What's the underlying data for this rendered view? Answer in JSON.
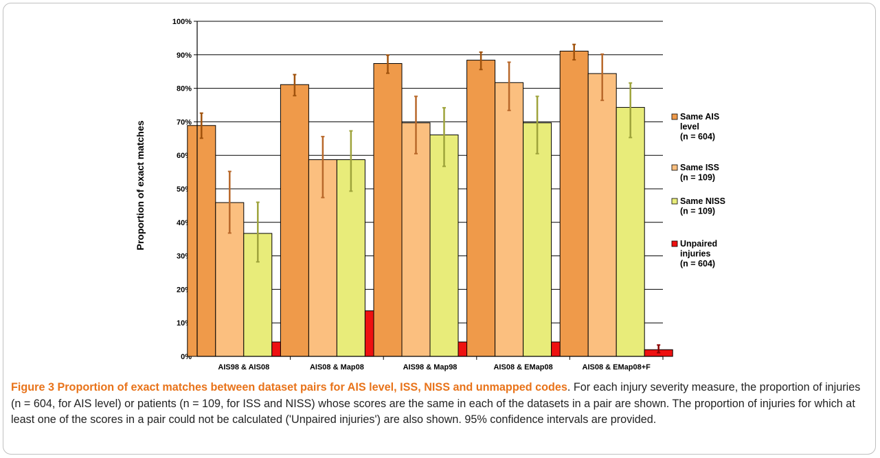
{
  "chart_data": {
    "type": "bar",
    "title": "",
    "xlabel": "",
    "ylabel": "Proportion of exact matches",
    "ylim": [
      0,
      100
    ],
    "yticks": [
      "0%",
      "10%",
      "20%",
      "30%",
      "40%",
      "50%",
      "60%",
      "70%",
      "80%",
      "90%",
      "100%"
    ],
    "grid": true,
    "legend_position": "right",
    "categories": [
      "AIS98 & AIS08",
      "AIS08 & Map08",
      "AIS98 & Map98",
      "AIS08 & EMap08",
      "AIS08 & EMap08+F"
    ],
    "series": [
      {
        "name": "Same AIS level (n = 604)",
        "legend_lines": [
          "Same AIS",
          "level",
          "(n = 604)"
        ],
        "color": "#ef9a4a",
        "errcolor": "#a0520c",
        "values": [
          68.9,
          81.1,
          87.4,
          88.4,
          91.1
        ],
        "lower": [
          65.1,
          77.8,
          84.5,
          85.6,
          88.5
        ],
        "upper": [
          72.6,
          84.1,
          89.9,
          90.8,
          93.1
        ]
      },
      {
        "name": "Same ISS (n = 109)",
        "legend_lines": [
          "Same ISS",
          "(n = 109)"
        ],
        "color": "#fbbf7f",
        "errcolor": "#b8682a",
        "values": [
          45.9,
          58.7,
          69.7,
          81.7,
          84.4
        ],
        "lower": [
          36.8,
          47.4,
          60.5,
          73.4,
          76.4
        ],
        "upper": [
          55.2,
          65.6,
          77.6,
          87.8,
          90.2
        ]
      },
      {
        "name": "Same NISS (n = 109)",
        "legend_lines": [
          "Same NISS",
          "(n = 109)"
        ],
        "color": "#e8ec7a",
        "errcolor": "#9ea33b",
        "values": [
          36.7,
          58.7,
          66.1,
          69.7,
          74.3
        ],
        "lower": [
          28.2,
          49.3,
          56.7,
          60.5,
          65.3
        ],
        "upper": [
          46.0,
          67.3,
          74.2,
          77.6,
          81.6
        ]
      },
      {
        "name": "Unpaired injuries (n = 604)",
        "legend_lines": [
          "Unpaired",
          "injuries",
          "(n = 604)"
        ],
        "color": "#ee1111",
        "errcolor": "#8b0000",
        "values": [
          4.3,
          13.6,
          4.3,
          4.3,
          2.0
        ],
        "lower": [
          2.9,
          11.1,
          2.9,
          2.9,
          1.1
        ],
        "upper": [
          6.1,
          16.6,
          6.1,
          6.1,
          3.4
        ]
      }
    ]
  },
  "caption": {
    "label": "Figure 3 Proportion of exact matches between dataset pairs for AIS level, ISS, NISS and unmapped codes",
    "text": ". For each injury severity measure, the proportion of injuries (n = 604, for AIS level) or patients (n = 109, for ISS and NISS) whose scores are the same in each of the datasets in a pair are shown. The proportion of injuries for which at least one of the scores in a pair could not be calculated ('Unpaired injuries') are also shown. 95% confidence intervals are provided."
  }
}
